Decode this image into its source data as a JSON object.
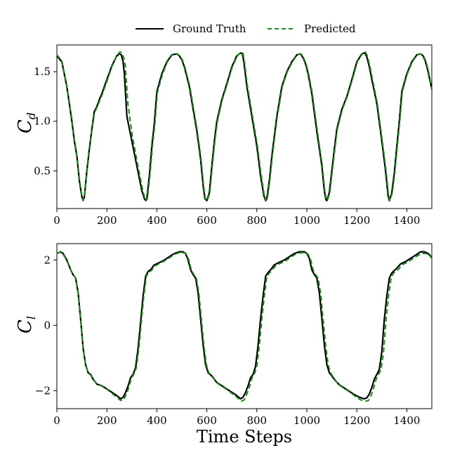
{
  "legend": [
    {
      "label": "Ground Truth",
      "color": "#000000",
      "dash": "solid"
    },
    {
      "label": "Predicted",
      "color": "#1a8a1a",
      "dash": "dashed"
    }
  ],
  "chart_data": [
    {
      "type": "line",
      "ylabel": "C",
      "ylabel_sub": "d",
      "xlim": [
        0,
        1500
      ],
      "ylim": [
        0.12,
        1.77
      ],
      "xticks": [
        0,
        200,
        400,
        600,
        800,
        1000,
        1200,
        1400
      ],
      "yticks": [
        0.5,
        1.0,
        1.5
      ],
      "ytick_labels": [
        "0.5",
        "1.0",
        "1.5"
      ],
      "series": [
        {
          "name": "Ground Truth",
          "color": "#000000",
          "dash": "solid",
          "x": [
            0,
            20,
            40,
            60,
            70,
            80,
            90,
            100,
            105,
            110,
            120,
            130,
            140,
            150,
            160,
            170,
            180,
            200,
            220,
            240,
            250,
            258,
            265,
            270,
            280,
            300,
            320,
            340,
            350,
            356,
            360,
            370,
            380,
            390,
            400,
            420,
            440,
            460,
            480,
            490,
            500,
            510,
            520,
            530,
            540,
            560,
            575,
            585,
            592,
            600,
            610,
            620,
            630,
            640,
            660,
            680,
            700,
            720,
            735,
            742,
            748,
            760,
            780,
            800,
            815,
            828,
            835,
            840,
            850,
            860,
            870,
            880,
            900,
            920,
            940,
            960,
            975,
            985,
            995,
            1005,
            1020,
            1040,
            1060,
            1070,
            1076,
            1080,
            1090,
            1100,
            1110,
            1120,
            1140,
            1160,
            1180,
            1200,
            1220,
            1232,
            1240,
            1250,
            1260,
            1280,
            1300,
            1315,
            1325,
            1330,
            1340,
            1350,
            1360,
            1370,
            1380,
            1400,
            1420,
            1440,
            1455,
            1465,
            1475,
            1485,
            1500
          ],
          "y": [
            1.66,
            1.6,
            1.35,
            1.0,
            0.8,
            0.65,
            0.4,
            0.24,
            0.2,
            0.24,
            0.5,
            0.72,
            0.92,
            1.1,
            1.15,
            1.22,
            1.28,
            1.42,
            1.56,
            1.66,
            1.68,
            1.67,
            1.6,
            1.48,
            1.05,
            0.8,
            0.55,
            0.3,
            0.22,
            0.2,
            0.22,
            0.45,
            0.75,
            0.98,
            1.3,
            1.48,
            1.6,
            1.67,
            1.68,
            1.66,
            1.62,
            1.55,
            1.45,
            1.35,
            1.2,
            0.9,
            0.62,
            0.35,
            0.22,
            0.2,
            0.28,
            0.55,
            0.8,
            1.0,
            1.22,
            1.38,
            1.55,
            1.66,
            1.69,
            1.68,
            1.6,
            1.35,
            1.05,
            0.75,
            0.45,
            0.25,
            0.2,
            0.22,
            0.4,
            0.65,
            0.85,
            1.05,
            1.35,
            1.5,
            1.6,
            1.67,
            1.68,
            1.64,
            1.58,
            1.48,
            1.28,
            0.9,
            0.55,
            0.3,
            0.21,
            0.2,
            0.28,
            0.5,
            0.72,
            0.92,
            1.12,
            1.25,
            1.42,
            1.6,
            1.68,
            1.69,
            1.65,
            1.55,
            1.42,
            1.18,
            0.8,
            0.5,
            0.25,
            0.2,
            0.28,
            0.48,
            0.75,
            1.0,
            1.3,
            1.48,
            1.6,
            1.67,
            1.68,
            1.66,
            1.6,
            1.5,
            1.32
          ]
        },
        {
          "name": "Predicted",
          "color": "#1a8a1a",
          "dash": "dashed",
          "x": [
            0,
            20,
            40,
            60,
            70,
            80,
            90,
            100,
            105,
            110,
            120,
            130,
            140,
            150,
            160,
            170,
            180,
            200,
            220,
            240,
            252,
            260,
            268,
            274,
            284,
            302,
            322,
            342,
            352,
            358,
            362,
            372,
            382,
            392,
            402,
            422,
            442,
            462,
            482,
            492,
            502,
            512,
            522,
            532,
            542,
            562,
            577,
            587,
            594,
            602,
            612,
            622,
            632,
            642,
            662,
            682,
            702,
            722,
            737,
            744,
            750,
            762,
            782,
            802,
            817,
            830,
            837,
            842,
            852,
            862,
            872,
            882,
            902,
            922,
            942,
            962,
            977,
            987,
            997,
            1007,
            1022,
            1042,
            1062,
            1072,
            1078,
            1082,
            1092,
            1102,
            1112,
            1122,
            1142,
            1162,
            1182,
            1202,
            1222,
            1234,
            1242,
            1252,
            1262,
            1282,
            1302,
            1317,
            1327,
            1332,
            1342,
            1352,
            1362,
            1372,
            1382,
            1402,
            1422,
            1442,
            1457,
            1467,
            1477,
            1487,
            1500
          ],
          "y": [
            1.67,
            1.61,
            1.36,
            1.02,
            0.82,
            0.66,
            0.42,
            0.25,
            0.2,
            0.23,
            0.48,
            0.7,
            0.9,
            1.08,
            1.14,
            1.2,
            1.26,
            1.4,
            1.55,
            1.66,
            1.7,
            1.69,
            1.64,
            1.56,
            1.18,
            0.85,
            0.58,
            0.32,
            0.22,
            0.2,
            0.22,
            0.44,
            0.74,
            0.97,
            1.29,
            1.47,
            1.6,
            1.67,
            1.68,
            1.66,
            1.62,
            1.55,
            1.45,
            1.35,
            1.2,
            0.9,
            0.62,
            0.35,
            0.22,
            0.2,
            0.28,
            0.55,
            0.8,
            1.0,
            1.22,
            1.38,
            1.55,
            1.66,
            1.7,
            1.69,
            1.61,
            1.36,
            1.06,
            0.76,
            0.46,
            0.25,
            0.2,
            0.22,
            0.4,
            0.65,
            0.85,
            1.05,
            1.35,
            1.5,
            1.6,
            1.67,
            1.68,
            1.64,
            1.58,
            1.48,
            1.28,
            0.9,
            0.55,
            0.3,
            0.21,
            0.2,
            0.28,
            0.5,
            0.72,
            0.92,
            1.12,
            1.25,
            1.42,
            1.6,
            1.68,
            1.7,
            1.66,
            1.56,
            1.43,
            1.18,
            0.8,
            0.5,
            0.25,
            0.2,
            0.28,
            0.48,
            0.75,
            1.0,
            1.3,
            1.48,
            1.6,
            1.67,
            1.68,
            1.66,
            1.6,
            1.5,
            1.32
          ]
        }
      ]
    },
    {
      "type": "line",
      "ylabel": "C",
      "ylabel_sub": "l",
      "xlabel": "Time Steps",
      "xlim": [
        0,
        1500
      ],
      "ylim": [
        -2.55,
        2.5
      ],
      "xticks": [
        0,
        200,
        400,
        600,
        800,
        1000,
        1200,
        1400
      ],
      "yticks": [
        -2,
        0,
        2
      ],
      "ytick_labels": [
        "−2",
        "0",
        "2"
      ],
      "series": [
        {
          "name": "Ground Truth",
          "color": "#000000",
          "dash": "solid",
          "x": [
            0,
            15,
            25,
            40,
            55,
            65,
            75,
            85,
            95,
            105,
            115,
            125,
            135,
            145,
            160,
            180,
            200,
            220,
            240,
            255,
            265,
            275,
            285,
            295,
            305,
            315,
            325,
            335,
            345,
            355,
            365,
            375,
            390,
            410,
            430,
            450,
            470,
            490,
            505,
            515,
            525,
            535,
            545,
            555,
            565,
            575,
            585,
            595,
            605,
            620,
            640,
            660,
            680,
            700,
            720,
            735,
            745,
            755,
            765,
            775,
            785,
            795,
            805,
            815,
            825,
            835,
            845,
            855,
            870,
            890,
            910,
            930,
            950,
            970,
            990,
            1000,
            1010,
            1020,
            1030,
            1040,
            1050,
            1060,
            1070,
            1080,
            1090,
            1100,
            1115,
            1130,
            1150,
            1170,
            1190,
            1210,
            1230,
            1240,
            1250,
            1260,
            1270,
            1280,
            1290,
            1300,
            1310,
            1320,
            1330,
            1340,
            1350,
            1360,
            1375,
            1395,
            1415,
            1435,
            1455,
            1470,
            1485,
            1495,
            1500
          ],
          "y": [
            2.2,
            2.25,
            2.2,
            2.0,
            1.7,
            1.55,
            1.45,
            1.0,
            0.2,
            -0.7,
            -1.2,
            -1.45,
            -1.5,
            -1.65,
            -1.8,
            -1.85,
            -1.95,
            -2.05,
            -2.15,
            -2.25,
            -2.2,
            -2.05,
            -1.85,
            -1.6,
            -1.5,
            -1.3,
            -0.7,
            0.1,
            0.9,
            1.5,
            1.65,
            1.7,
            1.85,
            1.92,
            2.0,
            2.1,
            2.2,
            2.25,
            2.25,
            2.2,
            2.0,
            1.7,
            1.55,
            1.45,
            1.0,
            0.2,
            -0.6,
            -1.2,
            -1.45,
            -1.55,
            -1.75,
            -1.85,
            -1.95,
            -2.05,
            -2.15,
            -2.25,
            -2.2,
            -2.05,
            -1.85,
            -1.6,
            -1.5,
            -1.25,
            -0.6,
            0.2,
            0.9,
            1.5,
            1.62,
            1.7,
            1.85,
            1.93,
            2.0,
            2.1,
            2.2,
            2.25,
            2.25,
            2.2,
            2.05,
            1.7,
            1.55,
            1.45,
            1.0,
            0.2,
            -0.6,
            -1.2,
            -1.45,
            -1.55,
            -1.7,
            -1.82,
            -1.92,
            -2.02,
            -2.12,
            -2.2,
            -2.25,
            -2.22,
            -2.1,
            -1.9,
            -1.65,
            -1.5,
            -1.35,
            -0.8,
            0.2,
            0.9,
            1.45,
            1.6,
            1.68,
            1.75,
            1.88,
            1.95,
            2.05,
            2.15,
            2.25,
            2.25,
            2.2,
            2.12,
            2.05
          ]
        },
        {
          "name": "Predicted",
          "color": "#1a8a1a",
          "dash": "dashed",
          "x": [
            0,
            15,
            25,
            40,
            55,
            65,
            75,
            85,
            95,
            105,
            115,
            125,
            135,
            145,
            160,
            180,
            200,
            220,
            240,
            255,
            268,
            278,
            288,
            298,
            308,
            318,
            328,
            338,
            348,
            358,
            368,
            378,
            393,
            413,
            433,
            453,
            473,
            493,
            508,
            518,
            528,
            538,
            548,
            558,
            568,
            578,
            588,
            598,
            608,
            623,
            643,
            663,
            683,
            703,
            723,
            738,
            750,
            760,
            770,
            780,
            790,
            800,
            810,
            820,
            830,
            840,
            850,
            860,
            875,
            895,
            915,
            935,
            955,
            975,
            995,
            1005,
            1015,
            1025,
            1035,
            1045,
            1055,
            1065,
            1075,
            1085,
            1095,
            1105,
            1120,
            1135,
            1155,
            1175,
            1195,
            1215,
            1235,
            1247,
            1257,
            1267,
            1277,
            1287,
            1297,
            1307,
            1317,
            1327,
            1337,
            1347,
            1357,
            1367,
            1380,
            1400,
            1420,
            1440,
            1460,
            1475,
            1490,
            1500
          ],
          "y": [
            2.2,
            2.24,
            2.18,
            1.98,
            1.7,
            1.55,
            1.44,
            0.98,
            0.2,
            -0.7,
            -1.2,
            -1.45,
            -1.52,
            -1.66,
            -1.8,
            -1.86,
            -1.96,
            -2.08,
            -2.2,
            -2.3,
            -2.28,
            -2.1,
            -1.9,
            -1.62,
            -1.5,
            -1.3,
            -0.7,
            0.1,
            0.9,
            1.5,
            1.62,
            1.68,
            1.82,
            1.9,
            1.98,
            2.08,
            2.18,
            2.23,
            2.22,
            2.18,
            2.0,
            1.7,
            1.55,
            1.45,
            1.0,
            0.2,
            -0.6,
            -1.2,
            -1.45,
            -1.56,
            -1.78,
            -1.88,
            -1.98,
            -2.1,
            -2.22,
            -2.32,
            -2.28,
            -2.1,
            -1.9,
            -1.62,
            -1.5,
            -1.25,
            -0.6,
            0.2,
            0.9,
            1.5,
            1.6,
            1.68,
            1.82,
            1.9,
            1.97,
            2.08,
            2.18,
            2.22,
            2.22,
            2.18,
            2.02,
            1.7,
            1.55,
            1.45,
            1.0,
            0.2,
            -0.6,
            -1.2,
            -1.45,
            -1.58,
            -1.74,
            -1.86,
            -1.96,
            -2.06,
            -2.18,
            -2.28,
            -2.32,
            -2.3,
            -2.15,
            -1.92,
            -1.66,
            -1.5,
            -1.35,
            -0.8,
            0.2,
            0.9,
            1.45,
            1.6,
            1.66,
            1.72,
            1.85,
            1.92,
            2.02,
            2.12,
            2.2,
            2.2,
            2.15,
            2.05
          ]
        }
      ]
    }
  ]
}
